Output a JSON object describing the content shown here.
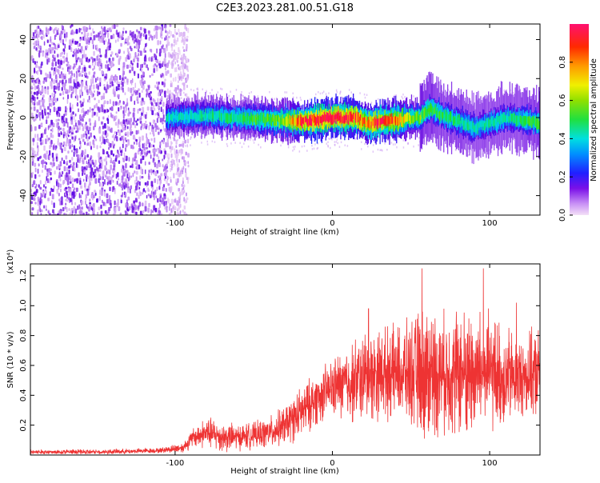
{
  "figure": {
    "title": "C2E3.2023.281.00.51.G18"
  },
  "chart_data": [
    {
      "type": "heatmap",
      "xlabel": "Height of straight line (km)",
      "ylabel": "Frequency (Hz)",
      "xlim": [
        -192,
        132
      ],
      "ylim": [
        -50,
        48
      ],
      "x_ticks": [
        -100,
        0,
        100
      ],
      "y_ticks": [
        -40,
        -20,
        0,
        20,
        40
      ],
      "x_tick_labels": [
        "-100",
        "0",
        "100"
      ],
      "y_tick_labels": [
        "-40",
        "-20",
        "0",
        "20",
        "40"
      ],
      "colorbar": {
        "label": "Normalized spectral amplitude",
        "range": [
          0,
          1
        ],
        "ticks": [
          0.0,
          0.2,
          0.4,
          0.6,
          0.8
        ],
        "tick_labels": [
          "0.0",
          "0.2",
          "0.4",
          "0.6",
          "0.8"
        ],
        "colors": [
          "#f4e0f7",
          "#b070f0",
          "#6000e0",
          "#2030ff",
          "#00c8ff",
          "#00e0b0",
          "#20e020",
          "#a0e000",
          "#f0f000",
          "#ff9000",
          "#ff2000",
          "#ff1060"
        ]
      },
      "noise_region": {
        "x_range": [
          -192,
          -106
        ],
        "note_free": true
      },
      "band_centerline": {
        "x": [
          -106,
          -80,
          -60,
          -40,
          -20,
          0,
          15,
          22,
          30,
          45,
          55,
          62,
          70,
          80,
          90,
          100,
          110,
          120,
          132
        ],
        "y": [
          0,
          1,
          0,
          -1,
          -2,
          0,
          0,
          -3,
          -2,
          -1,
          0,
          5,
          1,
          -2,
          -5,
          -3,
          0,
          -1,
          -3
        ]
      },
      "band_amplitude": {
        "x": [
          -106,
          -80,
          -60,
          -40,
          -30,
          -20,
          -10,
          0,
          10,
          20,
          30,
          40,
          50,
          60,
          70,
          80,
          90,
          100,
          110,
          120,
          132
        ],
        "value": [
          0.42,
          0.45,
          0.48,
          0.55,
          0.62,
          0.92,
          0.97,
          0.98,
          0.97,
          0.85,
          0.9,
          0.85,
          0.6,
          0.55,
          0.5,
          0.48,
          0.45,
          0.45,
          0.45,
          0.5,
          0.55
        ]
      }
    },
    {
      "type": "line",
      "xlabel": "Height of straight line (km)",
      "ylabel": "SNR (10 * v/v)",
      "scale_label": "(x10⁴)",
      "xlim": [
        -192,
        132
      ],
      "ylim": [
        0,
        1.28
      ],
      "x_ticks": [
        -100,
        0,
        100
      ],
      "y_ticks": [
        0.2,
        0.4,
        0.6,
        0.8,
        1.0,
        1.2
      ],
      "x_tick_labels": [
        "-100",
        "0",
        "100"
      ],
      "y_tick_labels": [
        "0.2",
        "0.4",
        "0.6",
        "0.8",
        "1.0",
        "1.2"
      ],
      "series": [
        {
          "color": "#ee3333",
          "envelope_x": [
            -192,
            -150,
            -110,
            -95,
            -88,
            -80,
            -70,
            -60,
            -50,
            -40,
            -30,
            -20,
            -10,
            0,
            10,
            20,
            30,
            40,
            50,
            60,
            70,
            80,
            90,
            100,
            110,
            120,
            132
          ],
          "envelope_base": [
            0.02,
            0.02,
            0.03,
            0.05,
            0.12,
            0.15,
            0.12,
            0.12,
            0.13,
            0.15,
            0.2,
            0.28,
            0.38,
            0.45,
            0.48,
            0.52,
            0.55,
            0.55,
            0.55,
            0.55,
            0.55,
            0.55,
            0.55,
            0.55,
            0.52,
            0.52,
            0.55
          ],
          "envelope_amp": [
            0.02,
            0.02,
            0.02,
            0.04,
            0.08,
            0.12,
            0.12,
            0.1,
            0.1,
            0.12,
            0.15,
            0.2,
            0.2,
            0.22,
            0.3,
            0.35,
            0.35,
            0.35,
            0.4,
            0.55,
            0.45,
            0.5,
            0.5,
            0.45,
            0.4,
            0.3,
            0.35
          ],
          "peaks_x": [
            23,
            57,
            96,
            117
          ],
          "peaks_y": [
            0.98,
            1.25,
            1.25,
            1.02
          ]
        }
      ]
    }
  ]
}
